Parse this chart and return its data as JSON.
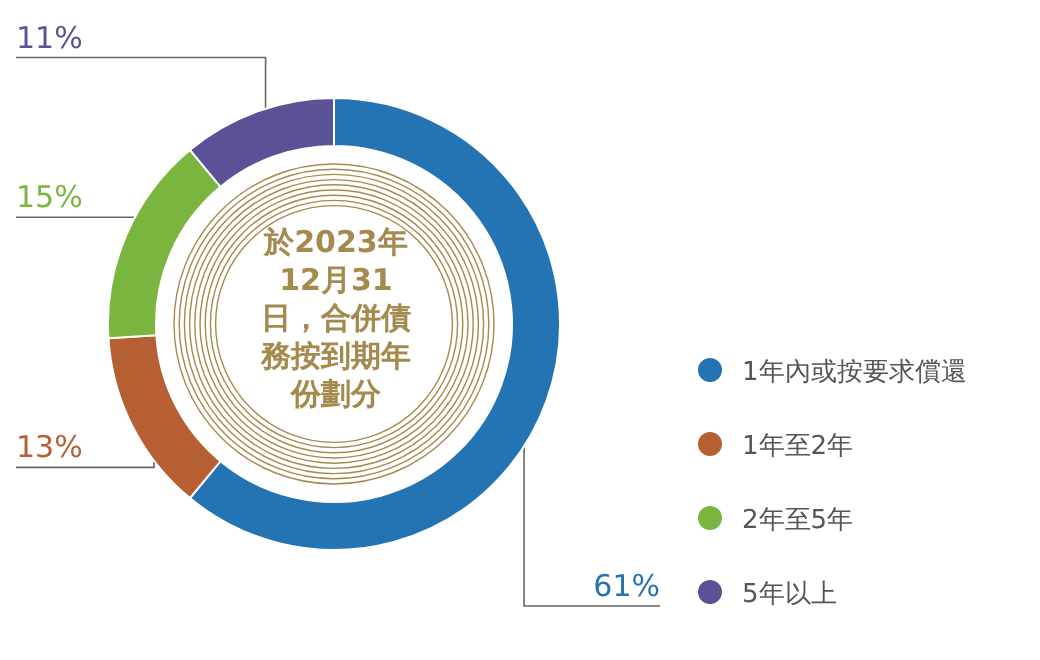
{
  "chart_data": {
    "type": "donut",
    "title": "於2023年12月31日，合併債務按到期年份劃分",
    "categories": [
      "1年內或按要求償還",
      "1年至2年",
      "2年至5年",
      "5年以上"
    ],
    "values": [
      61,
      13,
      15,
      11
    ],
    "colors": [
      "#2473b3",
      "#b55f33",
      "#7ab53f",
      "#5a5197"
    ],
    "value_labels": [
      "61%",
      "13%",
      "15%",
      "11%"
    ],
    "legend": "right"
  }
}
